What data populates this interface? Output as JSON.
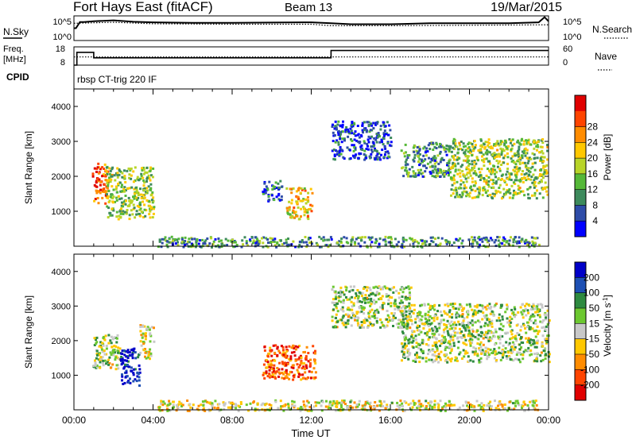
{
  "header": {
    "site": "Fort Hays East (fitACF)",
    "beam": "Beam 13",
    "date": "19/Mar/2015"
  },
  "chart_data": [
    {
      "type": "line",
      "id": "noise",
      "labels_left": [
        "N.Sky"
      ],
      "labels_right": [
        "N.Search"
      ],
      "y_ticks_left": [
        "10^5",
        "10^0"
      ],
      "y_ticks_right": [
        "10^5",
        "10^0"
      ],
      "x_range_hours": [
        0,
        24
      ],
      "series": [
        {
          "name": "N.Sky",
          "style": "solid",
          "x": [
            0,
            0.1,
            0.3,
            0.5,
            1,
            2,
            3,
            4,
            6,
            8,
            10,
            12,
            13,
            14,
            16,
            18,
            20,
            22,
            23.5,
            23.8,
            24
          ],
          "y": [
            0.5,
            0.5,
            0.75,
            0.75,
            0.78,
            0.82,
            0.76,
            0.74,
            0.72,
            0.72,
            0.73,
            0.74,
            0.7,
            0.66,
            0.66,
            0.7,
            0.7,
            0.7,
            0.74,
            0.95,
            0.78
          ]
        },
        {
          "name": "N.Search",
          "style": "dotted",
          "x": [
            0,
            2,
            4,
            8,
            12,
            13,
            16,
            20,
            24
          ],
          "y": [
            0.7,
            0.74,
            0.68,
            0.66,
            0.66,
            0.6,
            0.6,
            0.62,
            0.64
          ]
        }
      ]
    },
    {
      "type": "line",
      "id": "freq",
      "labels_left": [
        "Freq.",
        "[MHz]"
      ],
      "labels_right": [
        "Nave"
      ],
      "y_ticks_left": [
        "18",
        "8"
      ],
      "y_ticks_right": [
        "60",
        "0"
      ],
      "y_range_left": [
        8,
        18
      ],
      "series": [
        {
          "name": "Freq.",
          "style": "solid",
          "x": [
            0,
            0.15,
            0.15,
            1,
            1,
            13,
            13,
            24
          ],
          "y": [
            8,
            8,
            15,
            15,
            12,
            12,
            16,
            16
          ]
        },
        {
          "name": "Nave",
          "style": "dotted",
          "x": [
            0,
            24
          ],
          "y": [
            12.5,
            12.5
          ]
        }
      ]
    },
    {
      "type": "text_strip",
      "id": "cpid",
      "label": "CPID",
      "text": "rbsp CT-trig 220 IF"
    },
    {
      "type": "heatmap",
      "id": "power",
      "ylabel": "Slant Range [km]",
      "y_ticks": [
        "1000",
        "2000",
        "3000",
        "4000"
      ],
      "y_range": [
        0,
        4500
      ],
      "x_range_hours": [
        0,
        24
      ],
      "colorbar": {
        "label": "Power [dB]",
        "ticks": [
          "4",
          "8",
          "12",
          "16",
          "20",
          "24",
          "28"
        ],
        "colors": [
          "#0000ff",
          "#2e4ca8",
          "#3d8a5c",
          "#55b838",
          "#b8d428",
          "#ffc800",
          "#ff8c00",
          "#ff4400",
          "#e00000"
        ]
      },
      "regions": [
        {
          "t0": 0.9,
          "t1": 1.7,
          "r0": 1250,
          "r1": 2400,
          "level": 0.8
        },
        {
          "t0": 1.6,
          "t1": 4.0,
          "r0": 800,
          "r1": 2300,
          "level": 0.45
        },
        {
          "t0": 9.5,
          "t1": 10.5,
          "r0": 1300,
          "r1": 1900,
          "level": 0.2
        },
        {
          "t0": 10.7,
          "t1": 12.0,
          "r0": 800,
          "r1": 1700,
          "level": 0.6
        },
        {
          "t0": 13.0,
          "t1": 16.0,
          "r0": 2500,
          "r1": 3600,
          "level": 0.15
        },
        {
          "t0": 16.5,
          "t1": 19.0,
          "r0": 2000,
          "r1": 3000,
          "level": 0.3
        },
        {
          "t0": 19.0,
          "t1": 23.9,
          "r0": 1400,
          "r1": 3100,
          "level": 0.45
        },
        {
          "t0": 4.2,
          "t1": 23.5,
          "r0": 0,
          "r1": 300,
          "level": 0.3
        }
      ]
    },
    {
      "type": "heatmap",
      "id": "velocity",
      "ylabel": "Slant Range [km]",
      "y_ticks": [
        "1000",
        "2000",
        "3000",
        "4000"
      ],
      "y_range": [
        0,
        4500
      ],
      "x_range_hours": [
        0,
        24
      ],
      "xlabel": "Time UT",
      "x_ticks": [
        "00:00",
        "04:00",
        "08:00",
        "12:00",
        "16:00",
        "20:00",
        "00:00"
      ],
      "colorbar": {
        "label": "Velocity [m s^-1]",
        "ticks": [
          "200",
          "100",
          "50",
          "15",
          "-15",
          "-50",
          "-100",
          "-200"
        ],
        "colors": [
          "#0000c8",
          "#1e50b4",
          "#2e8a40",
          "#6cc830",
          "#c8c8c8",
          "#ffc800",
          "#ff8c00",
          "#ff4400",
          "#e00000"
        ]
      },
      "regions": [
        {
          "t0": 0.9,
          "t1": 2.3,
          "r0": 1200,
          "r1": 2200,
          "level": 0.45
        },
        {
          "t0": 2.3,
          "t1": 3.3,
          "r0": 700,
          "r1": 1800,
          "level": 0.05
        },
        {
          "t0": 3.3,
          "t1": 4.0,
          "r0": 1500,
          "r1": 2500,
          "level": 0.55
        },
        {
          "t0": 9.5,
          "t1": 12.2,
          "r0": 900,
          "r1": 1900,
          "level": 0.8
        },
        {
          "t0": 13.0,
          "t1": 17.0,
          "r0": 2400,
          "r1": 3600,
          "level": 0.45
        },
        {
          "t0": 16.5,
          "t1": 24.0,
          "r0": 1400,
          "r1": 3100,
          "level": 0.45
        },
        {
          "t0": 4.2,
          "t1": 23.5,
          "r0": 0,
          "r1": 300,
          "level": 0.55
        }
      ]
    }
  ]
}
